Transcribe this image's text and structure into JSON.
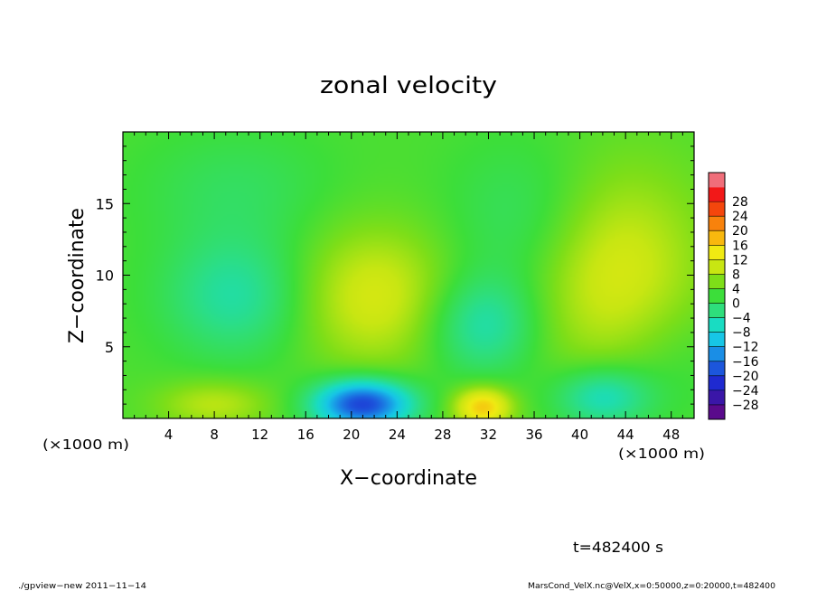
{
  "chart_data": {
    "type": "heatmap",
    "title": "zonal velocity",
    "xlabel": "X−coordinate",
    "ylabel": "Z−coordinate",
    "x_unit_label": "(×1000 m)",
    "xlim": [
      0,
      50
    ],
    "ylim": [
      0,
      20
    ],
    "x_ticks": [
      4,
      8,
      12,
      16,
      20,
      24,
      28,
      32,
      36,
      40,
      44,
      48
    ],
    "x_tick_labels": [
      "4",
      "8",
      "12",
      "16",
      "20",
      "24",
      "28",
      "32",
      "36",
      "40",
      "44",
      "48"
    ],
    "y_ticks": [
      5,
      10,
      15
    ],
    "y_tick_labels": [
      "5",
      "10",
      "15"
    ],
    "background_value": 1,
    "features": [
      {
        "x": 21,
        "z": 1,
        "sx": 3.0,
        "sz": 1.2,
        "value": -22
      },
      {
        "x": 31.5,
        "z": 0.8,
        "sx": 1.8,
        "sz": 1.0,
        "value": 13
      },
      {
        "x": 8,
        "z": 1,
        "sx": 3.5,
        "sz": 1.2,
        "value": 6
      },
      {
        "x": 42.5,
        "z": 10.5,
        "sx": 5.5,
        "sz": 5.0,
        "value": 9
      },
      {
        "x": 22,
        "z": 8.5,
        "sx": 5.0,
        "sz": 3.5,
        "value": 8
      },
      {
        "x": 10,
        "z": 8.5,
        "sx": 4.5,
        "sz": 3.0,
        "value": -7
      },
      {
        "x": 31.5,
        "z": 6.5,
        "sx": 3.5,
        "sz": 2.5,
        "value": -8
      },
      {
        "x": 42,
        "z": 1.5,
        "sx": 3.0,
        "sz": 1.5,
        "value": -9
      },
      {
        "x": 36,
        "z": 13.5,
        "sx": 5.0,
        "sz": 4.0,
        "value": -5
      },
      {
        "x": 10,
        "z": 16,
        "sx": 6.0,
        "sz": 3.0,
        "value": -3
      },
      {
        "x": 48,
        "z": 4,
        "sx": 4.0,
        "sz": 3.0,
        "value": -2
      }
    ],
    "colorbar": {
      "levels": [
        -32,
        -28,
        -24,
        -20,
        -16,
        -12,
        -8,
        -4,
        0,
        4,
        8,
        12,
        16,
        20,
        24,
        28,
        32
      ],
      "tick_labels": [
        "−28",
        "−24",
        "−20",
        "−16",
        "−12",
        "−8",
        "−4",
        "0",
        "4",
        "8",
        "12",
        "16",
        "20",
        "24",
        "28"
      ],
      "colors": [
        "#5a0a8c",
        "#3a16a8",
        "#1f2ad0",
        "#1c56dc",
        "#1a8ee6",
        "#17c6e6",
        "#19dcc2",
        "#2ede7c",
        "#3cde3a",
        "#7ede18",
        "#c8e612",
        "#f0ea12",
        "#f8b80e",
        "#f8820c",
        "#f4460c",
        "#f21818",
        "#f06e7a"
      ]
    }
  },
  "annotation_time": "t=482400 s",
  "footer_left": "./gpview−new  2011−11−14",
  "footer_right": "MarsCond_VelX.nc@VelX,x=0:50000,z=0:20000,t=482400"
}
